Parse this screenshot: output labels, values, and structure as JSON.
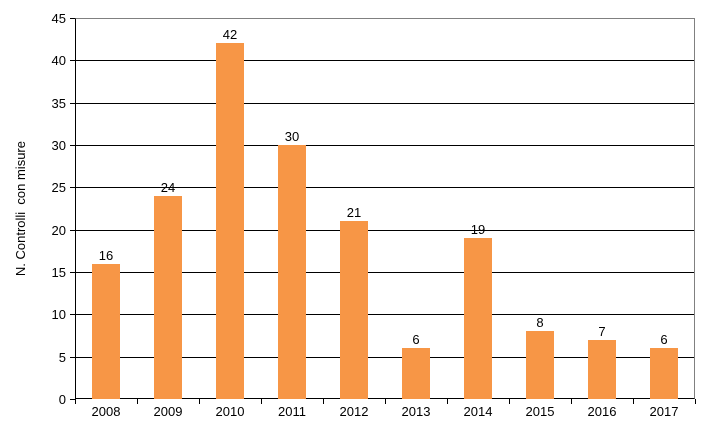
{
  "chart_data": {
    "type": "bar",
    "title": "",
    "categories": [
      "2008",
      "2009",
      "2010",
      "2011",
      "2012",
      "2013",
      "2014",
      "2015",
      "2016",
      "2017"
    ],
    "values": [
      16,
      24,
      42,
      30,
      21,
      6,
      19,
      8,
      7,
      6
    ],
    "data_labels": [
      "16",
      "24",
      "42",
      "30",
      "21",
      "6",
      "19",
      "8",
      "7",
      "6"
    ],
    "xlabel": "",
    "ylabel": "N. Controlli  con misure",
    "ylim": [
      0,
      45
    ],
    "ytick_step": 5,
    "yticks": [
      0,
      5,
      10,
      15,
      20,
      25,
      30,
      35,
      40,
      45
    ],
    "legend": "none",
    "grid": "horizontal",
    "colors": {
      "bar": "#F79646",
      "gridline": "#000000",
      "axis": "#000000",
      "plot_border": "#808080",
      "text": "#000000",
      "background": "#FFFFFF"
    }
  }
}
